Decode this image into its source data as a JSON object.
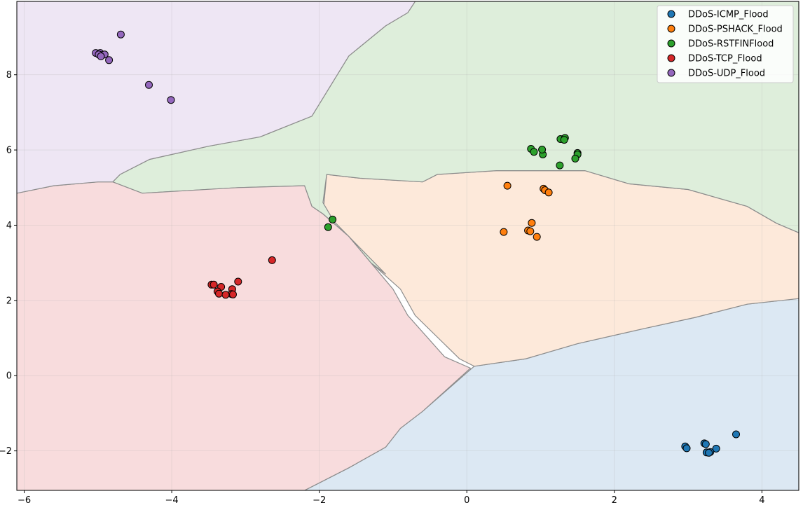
{
  "chart_data": {
    "type": "scatter",
    "title": "",
    "xlabel": "",
    "ylabel": "",
    "xlim": [
      -6.1,
      4.5
    ],
    "ylim": [
      -3.05,
      9.95
    ],
    "xticks": [
      -6,
      -4,
      -2,
      0,
      2,
      4
    ],
    "yticks": [
      -2,
      0,
      2,
      4,
      6,
      8
    ],
    "grid": true,
    "legend_position": "top-right",
    "background": "decision regions of a classifier (shaded by predicted class)",
    "regions": [
      {
        "class": "DDoS-ICMP_Flood",
        "fill": "#dce8f3",
        "polygon": [
          [
            -2.2,
            -3.05
          ],
          [
            -2.0,
            -2.85
          ],
          [
            -1.6,
            -2.45
          ],
          [
            -1.1,
            -1.9
          ],
          [
            -0.9,
            -1.4
          ],
          [
            -0.6,
            -0.95
          ],
          [
            0.1,
            0.25
          ],
          [
            0.8,
            0.45
          ],
          [
            1.5,
            0.85
          ],
          [
            2.4,
            1.25
          ],
          [
            3.1,
            1.55
          ],
          [
            3.8,
            1.9
          ],
          [
            4.5,
            2.05
          ],
          [
            4.5,
            -3.05
          ]
        ]
      },
      {
        "class": "DDoS-PSHACK_Flood",
        "fill": "#fde9da",
        "polygon": [
          [
            -1.95,
            4.3
          ],
          [
            -1.9,
            5.35
          ],
          [
            -1.45,
            5.25
          ],
          [
            -0.6,
            5.15
          ],
          [
            -0.4,
            5.35
          ],
          [
            0.4,
            5.45
          ],
          [
            1.6,
            5.45
          ],
          [
            2.2,
            5.1
          ],
          [
            3.0,
            4.95
          ],
          [
            3.8,
            4.5
          ],
          [
            4.2,
            4.05
          ],
          [
            4.5,
            3.8
          ],
          [
            4.5,
            2.05
          ],
          [
            3.8,
            1.9
          ],
          [
            3.1,
            1.55
          ],
          [
            2.4,
            1.25
          ],
          [
            1.5,
            0.85
          ],
          [
            0.8,
            0.45
          ],
          [
            0.1,
            0.25
          ],
          [
            -0.1,
            0.45
          ],
          [
            -0.7,
            1.6
          ],
          [
            -0.9,
            2.3
          ],
          [
            -1.3,
            3.0
          ],
          [
            -1.6,
            3.7
          ]
        ]
      },
      {
        "class": "DDoS-RSTFINFlood",
        "fill": "#deeedb",
        "polygon": [
          [
            -0.7,
            9.95
          ],
          [
            -0.8,
            9.65
          ],
          [
            -1.1,
            9.3
          ],
          [
            -1.6,
            8.5
          ],
          [
            -2.1,
            6.9
          ],
          [
            -2.8,
            6.35
          ],
          [
            -3.5,
            6.1
          ],
          [
            -4.3,
            5.75
          ],
          [
            -4.7,
            5.35
          ],
          [
            -4.8,
            5.15
          ],
          [
            -4.4,
            4.85
          ],
          [
            -3.1,
            5.0
          ],
          [
            -2.2,
            5.05
          ],
          [
            -2.1,
            4.5
          ],
          [
            -1.95,
            4.3
          ],
          [
            -1.6,
            3.7
          ],
          [
            -1.3,
            3.0
          ],
          [
            -1.1,
            2.7
          ],
          [
            -1.45,
            3.4
          ],
          [
            -1.8,
            4.1
          ],
          [
            -1.95,
            4.6
          ],
          [
            -1.9,
            5.35
          ],
          [
            -1.45,
            5.25
          ],
          [
            -0.6,
            5.15
          ],
          [
            -0.4,
            5.35
          ],
          [
            0.4,
            5.45
          ],
          [
            1.6,
            5.45
          ],
          [
            2.2,
            5.1
          ],
          [
            3.0,
            4.95
          ],
          [
            3.8,
            4.5
          ],
          [
            4.2,
            4.05
          ],
          [
            4.5,
            3.8
          ],
          [
            4.5,
            9.95
          ]
        ]
      },
      {
        "class": "DDoS-TCP_Flood",
        "fill": "#f8dcdd",
        "polygon": [
          [
            -6.1,
            -3.05
          ],
          [
            -2.2,
            -3.05
          ],
          [
            -2.0,
            -2.85
          ],
          [
            -1.6,
            -2.45
          ],
          [
            -1.1,
            -1.9
          ],
          [
            -0.9,
            -1.4
          ],
          [
            -0.6,
            -0.95
          ],
          [
            0.05,
            0.2
          ],
          [
            -0.3,
            0.5
          ],
          [
            -0.8,
            1.6
          ],
          [
            -1.0,
            2.3
          ],
          [
            -1.3,
            3.0
          ],
          [
            -1.6,
            3.7
          ],
          [
            -1.95,
            4.3
          ],
          [
            -2.1,
            4.5
          ],
          [
            -2.2,
            5.05
          ],
          [
            -3.1,
            5.0
          ],
          [
            -4.4,
            4.85
          ],
          [
            -4.8,
            5.15
          ],
          [
            -5.0,
            5.15
          ],
          [
            -5.6,
            5.05
          ],
          [
            -6.1,
            4.85
          ]
        ]
      },
      {
        "class": "DDoS-UDP_Flood",
        "fill": "#eee6f4",
        "polygon": [
          [
            -6.1,
            9.95
          ],
          [
            -0.7,
            9.95
          ],
          [
            -0.8,
            9.65
          ],
          [
            -1.1,
            9.3
          ],
          [
            -1.6,
            8.5
          ],
          [
            -2.1,
            6.9
          ],
          [
            -2.8,
            6.35
          ],
          [
            -3.5,
            6.1
          ],
          [
            -4.3,
            5.75
          ],
          [
            -4.7,
            5.35
          ],
          [
            -4.8,
            5.15
          ],
          [
            -5.0,
            5.15
          ],
          [
            -5.6,
            5.05
          ],
          [
            -6.1,
            4.85
          ]
        ]
      }
    ],
    "series": [
      {
        "name": "DDoS-ICMP_Flood",
        "color": "#1f77b4",
        "x": [
          3.65,
          3.22,
          3.24,
          2.96,
          2.98,
          3.38,
          3.25,
          3.3,
          3.28
        ],
        "y": [
          -1.56,
          -1.8,
          -1.82,
          -1.88,
          -1.93,
          -1.94,
          -2.04,
          -2.03,
          -2.05
        ]
      },
      {
        "name": "DDoS-PSHACK_Flood",
        "color": "#ff7f0e",
        "x": [
          0.55,
          1.04,
          1.06,
          1.11,
          0.88,
          0.83,
          0.86,
          0.5,
          0.95
        ],
        "y": [
          5.05,
          4.97,
          4.93,
          4.87,
          4.06,
          3.86,
          3.84,
          3.82,
          3.69
        ]
      },
      {
        "name": "DDoS-RSTFINFlood",
        "color": "#2ca02c",
        "x": [
          0.87,
          0.91,
          1.03,
          1.02,
          1.27,
          1.33,
          1.32,
          1.5,
          1.5,
          1.47,
          1.26,
          -1.82,
          -1.88
        ],
        "y": [
          6.03,
          5.95,
          5.88,
          6.01,
          6.29,
          6.32,
          6.27,
          5.92,
          5.88,
          5.77,
          5.59,
          4.15,
          3.95
        ]
      },
      {
        "name": "DDoS-TCP_Flood",
        "color": "#d62728",
        "x": [
          -2.64,
          -3.1,
          -3.46,
          -3.43,
          -3.33,
          -3.18,
          -3.38,
          -3.36,
          -3.19,
          -3.27,
          -3.17
        ],
        "y": [
          3.07,
          2.5,
          2.42,
          2.42,
          2.36,
          2.3,
          2.24,
          2.18,
          2.17,
          2.15,
          2.16
        ]
      },
      {
        "name": "DDoS-UDP_Flood",
        "color": "#9467bd",
        "x": [
          -4.69,
          -5.03,
          -4.97,
          -4.95,
          -4.99,
          -4.91,
          -4.96,
          -4.85,
          -4.31,
          -4.01
        ],
        "y": [
          9.07,
          8.58,
          8.58,
          8.52,
          8.54,
          8.54,
          8.49,
          8.39,
          7.73,
          7.33
        ]
      }
    ],
    "legend": [
      "DDoS-ICMP_Flood",
      "DDoS-PSHACK_Flood",
      "DDoS-RSTFINFlood",
      "DDoS-TCP_Flood",
      "DDoS-UDP_Flood"
    ]
  }
}
